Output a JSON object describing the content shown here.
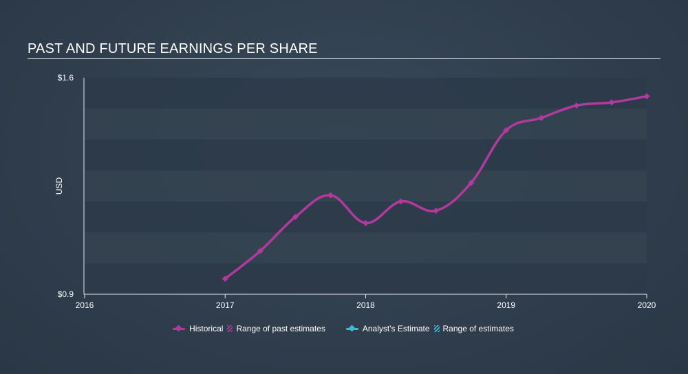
{
  "title": "PAST AND FUTURE EARNINGS PER SHARE",
  "colors": {
    "historical": "#b2399e",
    "analyst": "#3fb8db",
    "band_dark": "#2c3a49",
    "band_light": "#34434f",
    "axis": "#e6e9ec",
    "text": "#ffffff"
  },
  "legend": {
    "historical": "Historical",
    "past_range": "Range of past estimates",
    "analyst": "Analyst's Estimate",
    "range": "Range of estimates"
  },
  "chart_data": {
    "type": "line",
    "title": "PAST AND FUTURE EARNINGS PER SHARE",
    "xlabel": "",
    "ylabel": "USD",
    "xlim": [
      2016,
      2020
    ],
    "ylim": [
      0.9,
      1.6
    ],
    "x_ticks": [
      2016,
      2017,
      2018,
      2019,
      2020
    ],
    "x_tick_labels": [
      "2016",
      "2017",
      "2018",
      "2019",
      "2020"
    ],
    "y_tick_labels": [
      "$1.6",
      "$0.9"
    ],
    "y_ticks": [
      1.6,
      0.9
    ],
    "grid": "horizontal bands",
    "legend_position": "bottom-center",
    "series": [
      {
        "name": "Historical",
        "x": [
          2017.0,
          2017.25,
          2017.5,
          2017.75,
          2018.0,
          2018.25,
          2018.5,
          2018.75,
          2019.0,
          2019.25,
          2019.5,
          2019.75,
          2020.0
        ],
        "values": [
          0.95,
          1.04,
          1.15,
          1.22,
          1.13,
          1.2,
          1.17,
          1.26,
          1.43,
          1.47,
          1.51,
          1.52,
          1.54
        ]
      }
    ]
  }
}
